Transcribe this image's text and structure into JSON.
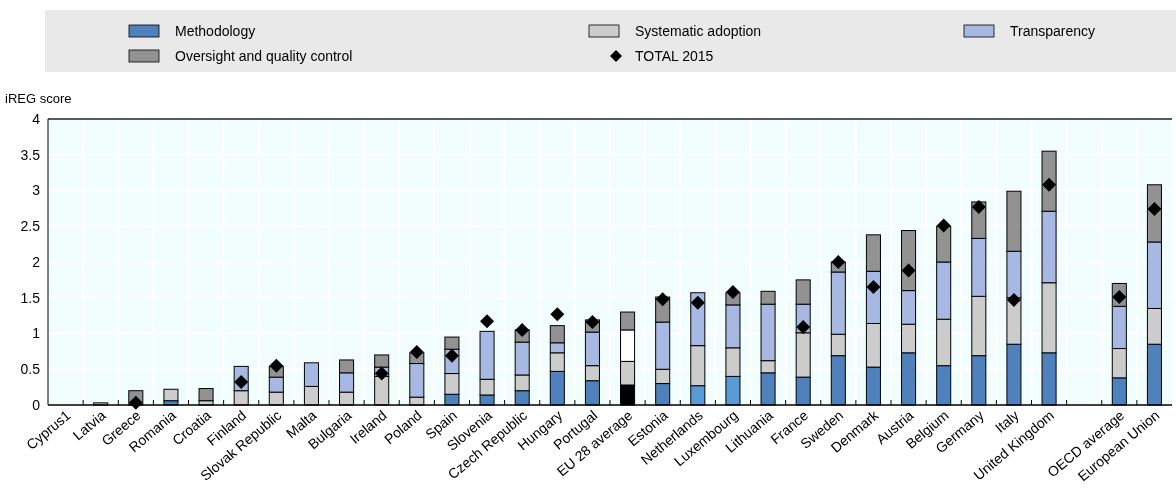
{
  "chart_data": {
    "type": "bar",
    "stacked": true,
    "ylabel": "iREG score",
    "categories": [
      "Cyprus1",
      "Latvia",
      "Greece",
      "Romania",
      "Croatia",
      "Finland",
      "Slovak Republic",
      "Malta",
      "Bulgaria",
      "Ireland",
      "Poland",
      "Spain",
      "Slovenia",
      "Czech Republic",
      "Hungary",
      "Portugal",
      "EU 28 average",
      "Estonia",
      "Netherlands",
      "Luxembourg",
      "Lithuania",
      "France",
      "Sweden",
      "Denmark",
      "Austria",
      "Belgium",
      "Germany",
      "Italy",
      "United Kingdom",
      null,
      "OECD average",
      "European Union"
    ],
    "series": [
      {
        "name": "Methodology",
        "color": "#4f81bd",
        "colors": [
          "#4f81bd",
          "#4f81bd",
          "#4f81bd",
          "#4f81bd",
          "#4f81bd",
          "#4f81bd",
          "#4f81bd",
          "#4f81bd",
          "#4f81bd",
          "#4f81bd",
          "#4f81bd",
          "#4f81bd",
          "#4f81bd",
          "#4f81bd",
          "#4f81bd",
          "#4f81bd",
          "#000000",
          "#4f81bd",
          "#5b9bd5",
          "#5b9bd5",
          "#4f81bd",
          "#4f81bd",
          "#4f81bd",
          "#4f81bd",
          "#4f81bd",
          "#4f81bd",
          "#4f81bd",
          "#4f81bd",
          "#4f81bd",
          null,
          "#4f81bd",
          "#4f81bd"
        ],
        "values": [
          0,
          0,
          0,
          0.06,
          0,
          0,
          0,
          0,
          0,
          0,
          0,
          0.15,
          0.14,
          0.2,
          0.47,
          0.34,
          0.28,
          0.3,
          0.27,
          0.4,
          0.45,
          0.39,
          0.69,
          0.53,
          0.73,
          0.55,
          0.69,
          0.85,
          0.73,
          null,
          0.38,
          0.85
        ]
      },
      {
        "name": "Systematic adoption",
        "color": "#cccccc",
        "values": [
          0,
          0.03,
          0,
          0.16,
          0.06,
          0.2,
          0.18,
          0.26,
          0.18,
          0.4,
          0.11,
          0.29,
          0.22,
          0.22,
          0.26,
          0.21,
          0.33,
          0.2,
          0.56,
          0.4,
          0.17,
          0.62,
          0.3,
          0.61,
          0.4,
          0.65,
          0.83,
          0.65,
          0.98,
          null,
          0.41,
          0.5
        ]
      },
      {
        "name": "Transparency",
        "color": "#a7b9e3",
        "colors": [
          "#a7b9e3",
          "#a7b9e3",
          "#a7b9e3",
          "#a7b9e3",
          "#a7b9e3",
          "#a7b9e3",
          "#a7b9e3",
          "#a7b9e3",
          "#a7b9e3",
          "#a7b9e3",
          "#a7b9e3",
          "#a7b9e3",
          "#a7b9e3",
          "#a7b9e3",
          "#a7b9e3",
          "#a7b9e3",
          "#ffffff",
          "#a7b9e3",
          "#a7b9e3",
          "#a7b9e3",
          "#a7b9e3",
          "#a7b9e3",
          "#a7b9e3",
          "#a7b9e3",
          "#a7b9e3",
          "#a7b9e3",
          "#a7b9e3",
          "#a7b9e3",
          "#a7b9e3",
          null,
          "#a7b9e3",
          "#a7b9e3"
        ],
        "values": [
          0,
          0,
          0,
          0,
          0,
          0.34,
          0.21,
          0.33,
          0.27,
          0.13,
          0.47,
          0.34,
          0.67,
          0.46,
          0.14,
          0.47,
          0.44,
          0.66,
          0.74,
          0.6,
          0.79,
          0.4,
          0.87,
          0.73,
          0.47,
          0.8,
          0.81,
          0.65,
          1.0,
          null,
          0.59,
          0.93
        ]
      },
      {
        "name": "Oversight and quality control",
        "color": "#929292",
        "values": [
          0,
          0,
          0.2,
          0,
          0.17,
          0,
          0.15,
          0,
          0.18,
          0.17,
          0.15,
          0.17,
          0,
          0.17,
          0.24,
          0.17,
          0.25,
          0.35,
          0,
          0.17,
          0.18,
          0.34,
          0.14,
          0.51,
          0.84,
          0.5,
          0.51,
          0.84,
          0.84,
          null,
          0.32,
          0.8
        ]
      },
      {
        "name": "TOTAL 2015",
        "type": "scatter",
        "marker": "diamond",
        "color": "#000000",
        "values": [
          null,
          null,
          0.03,
          null,
          null,
          0.32,
          0.55,
          null,
          null,
          0.44,
          0.74,
          0.69,
          1.17,
          1.05,
          1.27,
          1.16,
          null,
          1.48,
          1.43,
          1.58,
          null,
          1.09,
          2.0,
          1.65,
          1.88,
          2.51,
          2.77,
          1.47,
          3.08,
          null,
          1.51,
          2.74
        ]
      }
    ],
    "ylim": [
      0,
      4
    ],
    "yticks": [
      0,
      0.5,
      1,
      1.5,
      2,
      2.5,
      3,
      3.5,
      4
    ],
    "grid": true,
    "legend": "top"
  }
}
